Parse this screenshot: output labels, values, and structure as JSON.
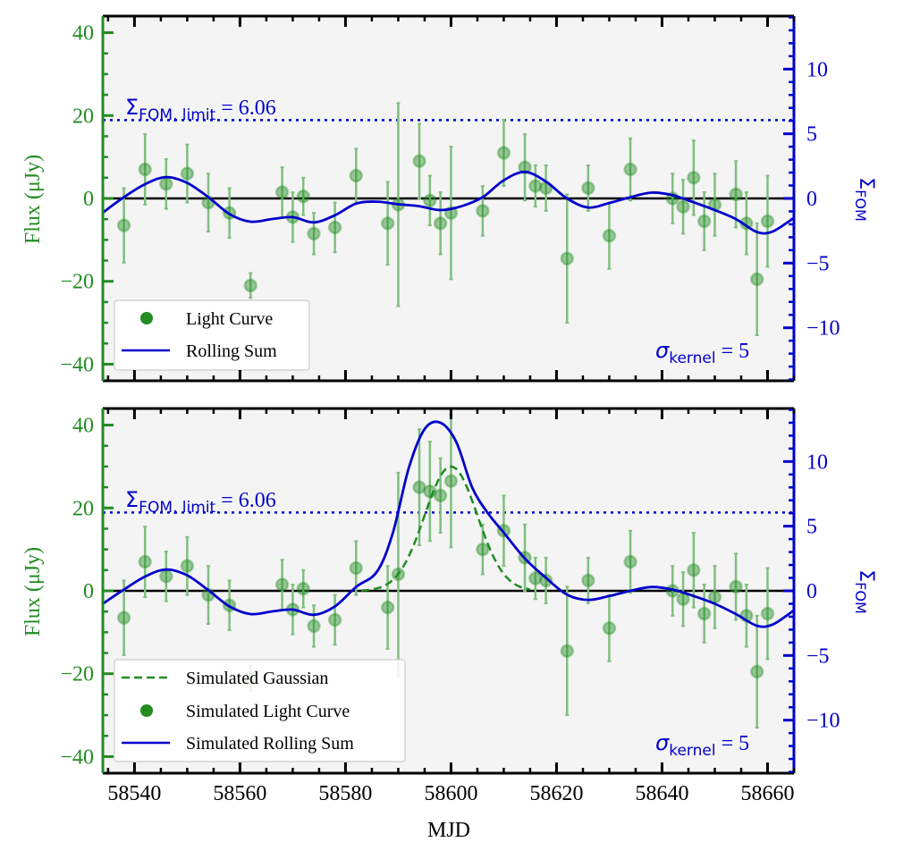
{
  "colors": {
    "green": "#228B22",
    "blue": "#0000CC",
    "zero_line": "#000000",
    "panel_bg": "#F4F4F4",
    "errorbar": "#7FBF7F"
  },
  "chart_data": [
    {
      "type": "scatter",
      "panel": "top",
      "xlabel": "",
      "ylabel": "Flux (μJy)",
      "ylabel_right_base": "Σ",
      "ylabel_right_sub": "FOM",
      "xlim": [
        58534,
        58665
      ],
      "ylim": [
        -44,
        44
      ],
      "ylim_right": [
        -14.1,
        14.1
      ],
      "yticks": [
        -40,
        -20,
        0,
        20,
        40
      ],
      "yticklabels": [
        "−40",
        "−20",
        "0",
        "20",
        "40"
      ],
      "yticks_right": [
        -10,
        -5,
        0,
        5,
        10
      ],
      "yticklabels_right": [
        "−10",
        "−5",
        "0",
        "5",
        "10"
      ],
      "xticks": [
        58540,
        58560,
        58580,
        58600,
        58620,
        58640,
        58660
      ],
      "xticklabels": [],
      "limit": 6.06,
      "limit_label_base": "Σ",
      "limit_label_sub": "FOM, limit",
      "limit_label_value": " = 6.06",
      "kernel_label_base": "σ",
      "kernel_label_sub": "kernel",
      "kernel_label_value": " = 5",
      "legend": [
        {
          "type": "marker",
          "label": "Light Curve"
        },
        {
          "type": "line",
          "label": "Rolling Sum"
        }
      ],
      "points": [
        [
          58538,
          -6.5,
          9
        ],
        [
          58542,
          7,
          8.5
        ],
        [
          58546,
          3.5,
          6
        ],
        [
          58550,
          6,
          7
        ],
        [
          58554,
          -1,
          7
        ],
        [
          58558,
          -3.5,
          6
        ],
        [
          58562,
          -21,
          3
        ],
        [
          58568,
          1.5,
          6
        ],
        [
          58570,
          -4.5,
          6
        ],
        [
          58572,
          0.5,
          4.5
        ],
        [
          58574,
          -8.5,
          5
        ],
        [
          58578,
          -7,
          6
        ],
        [
          58582,
          5.5,
          6.5
        ],
        [
          58588,
          -6,
          10
        ],
        [
          58590,
          -1.5,
          24.5
        ],
        [
          58594,
          9,
          9
        ],
        [
          58596,
          -0.5,
          6
        ],
        [
          58598,
          -6,
          7.5
        ],
        [
          58600,
          -3.5,
          16
        ],
        [
          58606,
          -3,
          6
        ],
        [
          58610,
          11,
          8
        ],
        [
          58614,
          7.5,
          8
        ],
        [
          58616,
          3,
          5
        ],
        [
          58618,
          2.5,
          5.5
        ],
        [
          58622,
          -14.5,
          15.5
        ],
        [
          58626,
          2.5,
          5.5
        ],
        [
          58630,
          -9,
          8
        ],
        [
          58634,
          7,
          7.5
        ],
        [
          58642,
          0,
          6
        ],
        [
          58644,
          -2,
          6.5
        ],
        [
          58646,
          5,
          9
        ],
        [
          58648,
          -5.5,
          7
        ],
        [
          58650,
          -1.5,
          7.5
        ],
        [
          58654,
          1,
          8
        ],
        [
          58656,
          -6,
          7.5
        ],
        [
          58658,
          -19.5,
          13.5
        ],
        [
          58660,
          -5.5,
          11
        ]
      ],
      "rolling_sum": {
        "x": [
          58534,
          58538,
          58542,
          58546,
          58550,
          58554,
          58558,
          58562,
          58566,
          58570,
          58574,
          58578,
          58582,
          58586,
          58590,
          58594,
          58598,
          58602,
          58606,
          58610,
          58614,
          58618,
          58622,
          58626,
          58630,
          58634,
          58638,
          58642,
          58646,
          58650,
          58654,
          58658,
          58661,
          58665
        ],
        "y": [
          -1.1,
          0.1,
          1.1,
          1.65,
          1.2,
          0.1,
          -1.2,
          -1.8,
          -1.6,
          -1.45,
          -1.85,
          -1.3,
          -0.4,
          -0.25,
          -0.45,
          -0.6,
          -0.9,
          -0.6,
          0.1,
          1.4,
          2.05,
          1.3,
          0,
          -0.7,
          -0.35,
          0.1,
          0.45,
          0.25,
          -0.3,
          -0.9,
          -1.6,
          -2.6,
          -2.55,
          -1.5
        ]
      }
    },
    {
      "type": "scatter",
      "panel": "bottom",
      "xlabel": "MJD",
      "ylabel": "Flux (μJy)",
      "ylabel_right_base": "Σ",
      "ylabel_right_sub": "FOM",
      "xlim": [
        58534,
        58665
      ],
      "ylim": [
        -44,
        44
      ],
      "ylim_right": [
        -14.1,
        14.1
      ],
      "yticks": [
        -40,
        -20,
        0,
        20,
        40
      ],
      "yticklabels": [
        "−40",
        "−20",
        "0",
        "20",
        "40"
      ],
      "yticks_right": [
        -10,
        -5,
        0,
        5,
        10
      ],
      "yticklabels_right": [
        "−10",
        "−5",
        "0",
        "5",
        "10"
      ],
      "xticks": [
        58540,
        58560,
        58580,
        58600,
        58620,
        58640,
        58660
      ],
      "xticklabels": [
        "58540",
        "58560",
        "58580",
        "58600",
        "58620",
        "58640",
        "58660"
      ],
      "limit": 6.06,
      "limit_label_base": "Σ",
      "limit_label_sub": "FOM, limit",
      "limit_label_value": " = 6.06",
      "kernel_label_base": "σ",
      "kernel_label_sub": "kernel",
      "kernel_label_value": " = 5",
      "legend": [
        {
          "type": "dashed",
          "label": "Simulated Gaussian"
        },
        {
          "type": "marker",
          "label": "Simulated Light Curve"
        },
        {
          "type": "line",
          "label": "Simulated Rolling Sum"
        }
      ],
      "gaussian": {
        "amplitude": 30,
        "mu": 58600,
        "sigma": 5,
        "x_range": [
          58583,
          58615
        ]
      },
      "points": [
        [
          58538,
          -6.5,
          9
        ],
        [
          58542,
          7,
          8.5
        ],
        [
          58546,
          3.5,
          6
        ],
        [
          58550,
          6,
          7
        ],
        [
          58554,
          -1,
          7
        ],
        [
          58558,
          -3.5,
          6
        ],
        [
          58562,
          -21,
          3
        ],
        [
          58568,
          1.5,
          6
        ],
        [
          58570,
          -4.5,
          6
        ],
        [
          58572,
          0.5,
          4.5
        ],
        [
          58574,
          -8.5,
          5
        ],
        [
          58578,
          -7,
          6
        ],
        [
          58582,
          5.5,
          6.5
        ],
        [
          58588,
          -4,
          10
        ],
        [
          58590,
          4,
          24.5
        ],
        [
          58594,
          25,
          14
        ],
        [
          58596,
          24,
          12
        ],
        [
          58598,
          23,
          9
        ],
        [
          58600,
          26.5,
          16
        ],
        [
          58606,
          10,
          6
        ],
        [
          58610,
          14.5,
          8.5
        ],
        [
          58614,
          8,
          8
        ],
        [
          58616,
          3,
          5
        ],
        [
          58618,
          2.5,
          5.5
        ],
        [
          58622,
          -14.5,
          15.5
        ],
        [
          58626,
          2.5,
          5.5
        ],
        [
          58630,
          -9,
          8
        ],
        [
          58634,
          7,
          7.5
        ],
        [
          58642,
          0,
          6
        ],
        [
          58644,
          -2,
          6.5
        ],
        [
          58646,
          5,
          9
        ],
        [
          58648,
          -5.5,
          7
        ],
        [
          58650,
          -1.5,
          7.5
        ],
        [
          58654,
          1,
          8
        ],
        [
          58656,
          -6,
          7.5
        ],
        [
          58658,
          -19.5,
          13.5
        ],
        [
          58660,
          -5.5,
          11
        ]
      ],
      "rolling_sum": {
        "x": [
          58534,
          58538,
          58542,
          58546,
          58550,
          58554,
          58558,
          58562,
          58566,
          58570,
          58574,
          58578,
          58582,
          58586,
          58589,
          58592,
          58595,
          58598,
          58601,
          58604,
          58607,
          58610,
          58614,
          58618,
          58622,
          58626,
          58630,
          58634,
          58638,
          58642,
          58646,
          58650,
          58654,
          58658,
          58661,
          58665
        ],
        "y": [
          -1,
          0.1,
          1.1,
          1.65,
          1.2,
          0.05,
          -1.2,
          -1.8,
          -1.6,
          -1.45,
          -1.85,
          -1.2,
          0.3,
          1.5,
          4.5,
          9.5,
          12.5,
          13,
          11.5,
          8,
          6,
          4.5,
          2.5,
          1,
          -0.3,
          -0.7,
          -0.4,
          0,
          0.3,
          0.1,
          -0.4,
          -1,
          -1.8,
          -2.7,
          -2.6,
          -1.5
        ]
      }
    }
  ]
}
